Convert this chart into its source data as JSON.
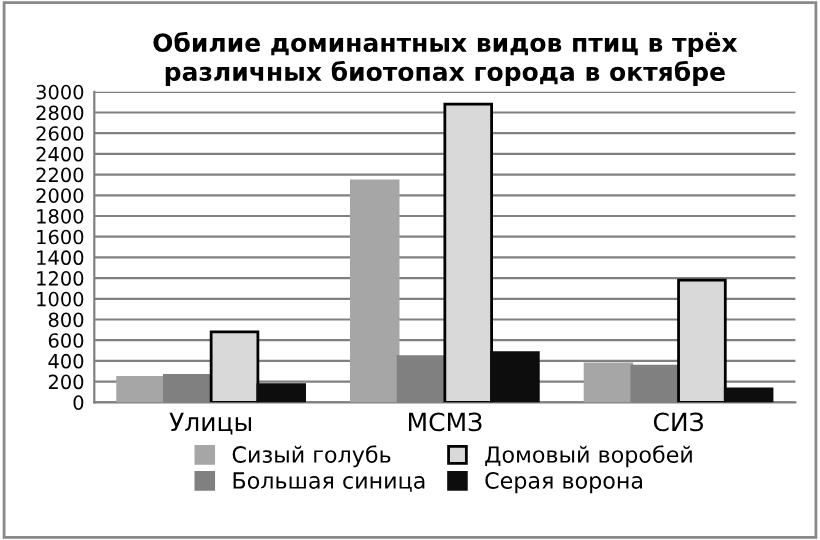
{
  "chart_data": {
    "type": "bar",
    "title": "Обилие доминантных видов птиц в трёх\nразличных биотопах города в октябре",
    "categories": [
      "Улицы",
      "МСМЗ",
      "СИЗ"
    ],
    "series": [
      {
        "name": "Сизый голубь",
        "color": "#a6a6a6",
        "values": [
          240,
          2140,
          370
        ]
      },
      {
        "name": "Большая синица",
        "color": "#808080",
        "values": [
          260,
          440,
          350
        ]
      },
      {
        "name": "Домовый воробей",
        "color": "#d9d9d9",
        "values": [
          680,
          2880,
          1180
        ]
      },
      {
        "name": "Серая ворона",
        "color": "#0d0d0d",
        "values": [
          170,
          480,
          130
        ]
      }
    ],
    "ylim": [
      0,
      3000
    ],
    "yticks": [
      0,
      200,
      400,
      600,
      800,
      1000,
      1200,
      1400,
      1600,
      1800,
      2000,
      2200,
      2400,
      2600,
      2800,
      3000
    ],
    "grid": "y",
    "legend": "bottom"
  }
}
